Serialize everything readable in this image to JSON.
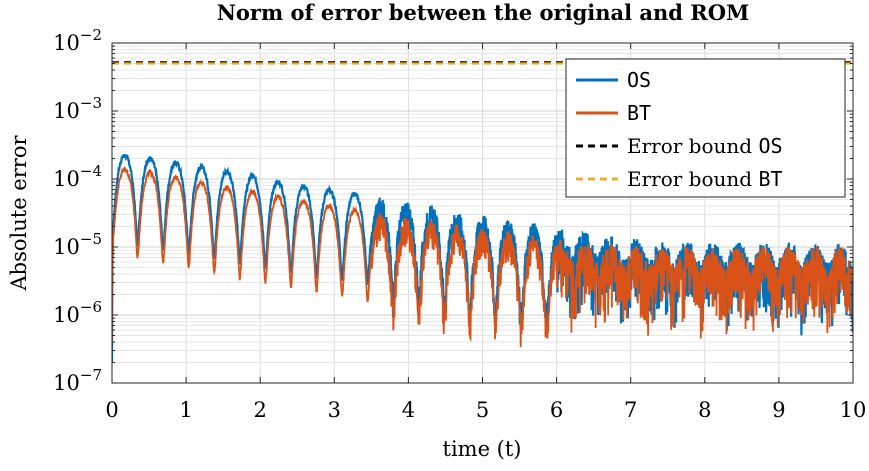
{
  "chart_data": {
    "type": "line",
    "title": "Norm of error between the original and ROM",
    "xlabel": "time (t)",
    "ylabel": "Absolute error",
    "xlim": [
      0,
      10
    ],
    "ylim": [
      1e-07,
      0.01
    ],
    "yscale": "log",
    "grid": true,
    "legend_position": "top-right",
    "x_ticks": [
      "0",
      "1",
      "2",
      "3",
      "4",
      "5",
      "6",
      "7",
      "8",
      "9",
      "10"
    ],
    "y_ticks": [
      {
        "base": "10",
        "exp": "−7"
      },
      {
        "base": "10",
        "exp": "−6"
      },
      {
        "base": "10",
        "exp": "−5"
      },
      {
        "base": "10",
        "exp": "−4"
      },
      {
        "base": "10",
        "exp": "−3"
      },
      {
        "base": "10",
        "exp": "−2"
      }
    ],
    "series": [
      {
        "name_prefix": "",
        "name_code": "OS",
        "color": "#0072BD",
        "style": "solid",
        "peaks": [
          {
            "t": 0.33,
            "v": 0.00024
          },
          {
            "t": 0.66,
            "v": 0.0002
          },
          {
            "t": 1.0,
            "v": 0.00018
          },
          {
            "t": 1.35,
            "v": 0.00015
          },
          {
            "t": 1.7,
            "v": 0.00013
          },
          {
            "t": 2.05,
            "v": 0.00011
          },
          {
            "t": 2.4,
            "v": 9e-05
          },
          {
            "t": 2.75,
            "v": 8e-05
          },
          {
            "t": 3.1,
            "v": 7e-05
          },
          {
            "t": 3.45,
            "v": 6e-05
          },
          {
            "t": 3.8,
            "v": 5e-05
          },
          {
            "t": 4.15,
            "v": 4.5e-05
          },
          {
            "t": 4.5,
            "v": 3.8e-05
          },
          {
            "t": 4.85,
            "v": 3.3e-05
          },
          {
            "t": 5.2,
            "v": 2.8e-05
          },
          {
            "t": 5.55,
            "v": 2.4e-05
          },
          {
            "t": 5.9,
            "v": 2.1e-05
          },
          {
            "t": 6.25,
            "v": 1.8e-05
          },
          {
            "t": 6.6,
            "v": 1.6e-05
          },
          {
            "t": 7.0,
            "v": 1.4e-05
          },
          {
            "t": 7.5,
            "v": 1.3e-05
          },
          {
            "t": 8.0,
            "v": 1.25e-05
          },
          {
            "t": 8.5,
            "v": 1.2e-05
          },
          {
            "t": 9.0,
            "v": 1.2e-05
          },
          {
            "t": 9.5,
            "v": 1.2e-05
          },
          {
            "t": 10.0,
            "v": 1.2e-05
          }
        ],
        "start_value": 2e-07
      },
      {
        "name_prefix": "",
        "name_code": "BT",
        "color": "#D95319",
        "style": "solid",
        "peaks": [
          {
            "t": 0.33,
            "v": 0.00015
          },
          {
            "t": 0.66,
            "v": 0.000125
          },
          {
            "t": 1.0,
            "v": 0.00011
          },
          {
            "t": 1.35,
            "v": 9e-05
          },
          {
            "t": 1.7,
            "v": 7.5e-05
          },
          {
            "t": 2.05,
            "v": 6.5e-05
          },
          {
            "t": 2.4,
            "v": 5.5e-05
          },
          {
            "t": 2.75,
            "v": 4.8e-05
          },
          {
            "t": 3.1,
            "v": 4e-05
          },
          {
            "t": 3.45,
            "v": 3.5e-05
          },
          {
            "t": 3.8,
            "v": 3e-05
          },
          {
            "t": 4.15,
            "v": 2.6e-05
          },
          {
            "t": 4.5,
            "v": 2.3e-05
          },
          {
            "t": 4.85,
            "v": 2e-05
          },
          {
            "t": 5.2,
            "v": 1.8e-05
          },
          {
            "t": 5.55,
            "v": 1.6e-05
          },
          {
            "t": 5.9,
            "v": 1.4e-05
          },
          {
            "t": 6.25,
            "v": 1.3e-05
          },
          {
            "t": 6.6,
            "v": 1.2e-05
          },
          {
            "t": 7.0,
            "v": 1.1e-05
          },
          {
            "t": 7.5,
            "v": 1.1e-05
          },
          {
            "t": 8.0,
            "v": 1.05e-05
          },
          {
            "t": 8.5,
            "v": 1.05e-05
          },
          {
            "t": 9.0,
            "v": 1.05e-05
          },
          {
            "t": 9.5,
            "v": 1.05e-05
          },
          {
            "t": 10.0,
            "v": 1.05e-05
          }
        ],
        "start_value": 4e-07
      },
      {
        "name_prefix": "Error bound ",
        "name_code": "OS",
        "color": "#000000",
        "style": "dashed",
        "constant": 0.0052
      },
      {
        "name_prefix": "Error bound ",
        "name_code": "BT",
        "color": "#EDB120",
        "style": "dashed",
        "constant": 0.005
      }
    ]
  }
}
